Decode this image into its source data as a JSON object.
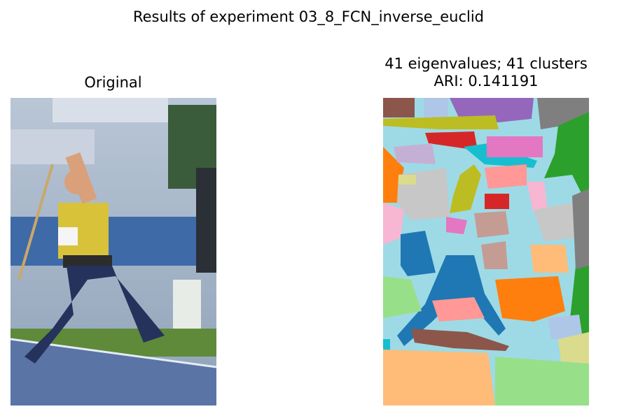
{
  "figure": {
    "suptitle": "Results of experiment 03_8_FCN_inverse_euclid"
  },
  "left_panel": {
    "title": "Original",
    "image": "photo-javelin-thrower"
  },
  "right_panel": {
    "title_line1": "41 eigenvalues; 41 clusters",
    "title_line2": "ARI: 0.141191",
    "image": "segmentation-cluster-map"
  },
  "palette": {
    "cluster_background": "#9edae5",
    "blue": "#1f77b4",
    "orange": "#ff7f0e",
    "green": "#2ca02c",
    "red": "#d62728",
    "purple": "#9467bd",
    "brown": "#8c564b",
    "pink": "#e377c2",
    "gray": "#7f7f7f",
    "olive": "#bcbd22",
    "cyan": "#17becf",
    "light_orange": "#ffbb78",
    "light_green": "#98df8a",
    "light_red": "#ff9896",
    "light_purple": "#c5b0d5",
    "light_brown": "#c49c94",
    "light_pink": "#f7b6d2",
    "light_gray": "#c7c7c7",
    "light_olive": "#dbdb8d",
    "light_blue": "#aec7e8"
  }
}
